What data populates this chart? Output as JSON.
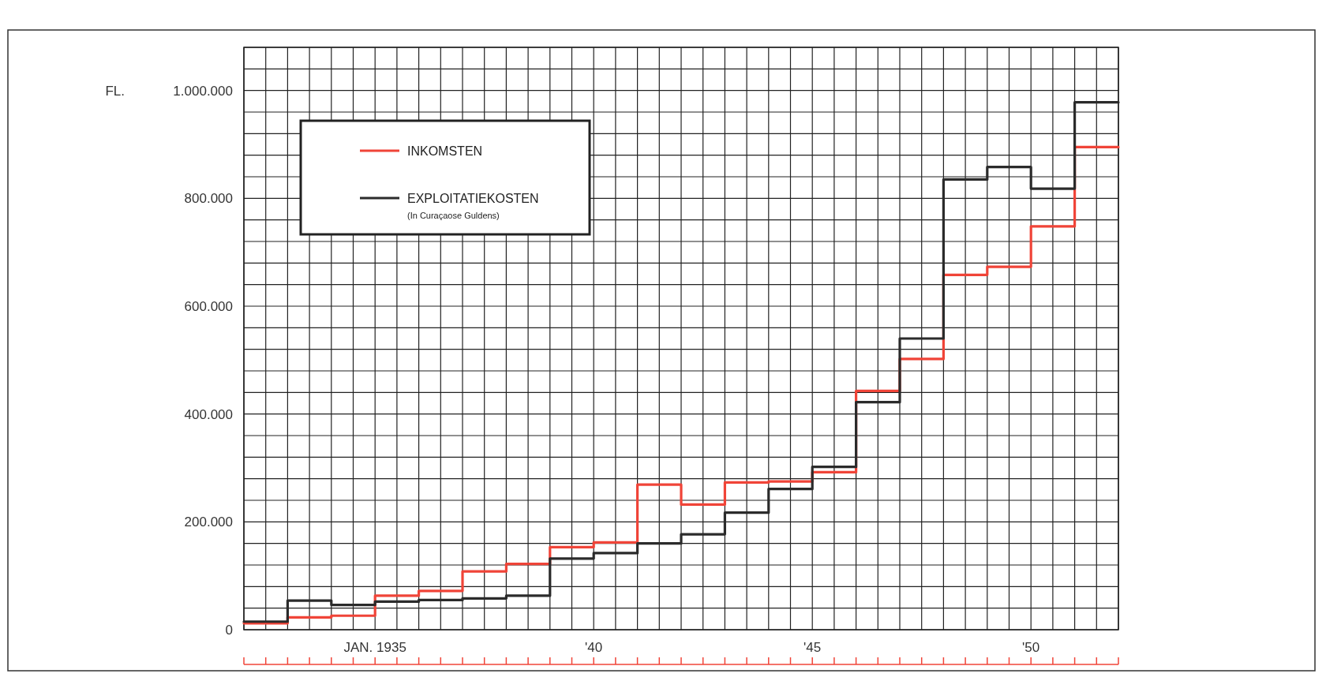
{
  "chart_data": {
    "type": "step",
    "ylabel": "FL.",
    "annotations": [
      "(In Curaçaose Guldens)"
    ],
    "legend": "top left",
    "grid": true,
    "x": [
      1932,
      1933,
      1934,
      1935,
      1936,
      1937,
      1938,
      1939,
      1940,
      1941,
      1942,
      1943,
      1944,
      1945,
      1946,
      1947,
      1948,
      1949,
      1950,
      1951,
      1952
    ],
    "series": [
      {
        "name": "INKOMSTEN",
        "color": "#f04438",
        "values": [
          12000,
          23000,
          26000,
          63000,
          72000,
          108000,
          122000,
          153000,
          162000,
          269000,
          232000,
          273000,
          275000,
          292000,
          443000,
          502000,
          658000,
          673000,
          748000,
          895000,
          895000
        ]
      },
      {
        "name": "EXPLOITATIEKOSTEN",
        "color": "#2b2b2b",
        "values": [
          15000,
          54000,
          46000,
          52000,
          55000,
          58000,
          63000,
          132000,
          142000,
          160000,
          177000,
          217000,
          261000,
          302000,
          422000,
          540000,
          835000,
          858000,
          818000,
          978000,
          978000
        ]
      }
    ],
    "xlim": [
      1932,
      1952
    ],
    "xticks": [
      {
        "value": 1932,
        "label": null
      },
      {
        "value": 1932.5,
        "label": null
      },
      {
        "value": 1933,
        "label": null
      },
      {
        "value": 1933.5,
        "label": null
      },
      {
        "value": 1934,
        "label": null
      },
      {
        "value": 1934.5,
        "label": null
      },
      {
        "value": 1935,
        "label": "JAN. 1935"
      },
      {
        "value": 1935.5,
        "label": null
      },
      {
        "value": 1936,
        "label": null
      },
      {
        "value": 1936.5,
        "label": null
      },
      {
        "value": 1937,
        "label": null
      },
      {
        "value": 1937.5,
        "label": null
      },
      {
        "value": 1938,
        "label": null
      },
      {
        "value": 1938.5,
        "label": null
      },
      {
        "value": 1939,
        "label": null
      },
      {
        "value": 1939.5,
        "label": null
      },
      {
        "value": 1940,
        "label": "'40"
      },
      {
        "value": 1940.5,
        "label": null
      },
      {
        "value": 1941,
        "label": null
      },
      {
        "value": 1941.5,
        "label": null
      },
      {
        "value": 1942,
        "label": null
      },
      {
        "value": 1942.5,
        "label": null
      },
      {
        "value": 1943,
        "label": null
      },
      {
        "value": 1943.5,
        "label": null
      },
      {
        "value": 1944,
        "label": null
      },
      {
        "value": 1944.5,
        "label": null
      },
      {
        "value": 1945,
        "label": "'45"
      },
      {
        "value": 1945.5,
        "label": null
      },
      {
        "value": 1946,
        "label": null
      },
      {
        "value": 1946.5,
        "label": null
      },
      {
        "value": 1947,
        "label": null
      },
      {
        "value": 1947.5,
        "label": null
      },
      {
        "value": 1948,
        "label": null
      },
      {
        "value": 1948.5,
        "label": null
      },
      {
        "value": 1949,
        "label": null
      },
      {
        "value": 1949.5,
        "label": null
      },
      {
        "value": 1950,
        "label": "'50"
      },
      {
        "value": 1950.5,
        "label": null
      },
      {
        "value": 1951,
        "label": null
      },
      {
        "value": 1951.5,
        "label": null
      },
      {
        "value": 1952,
        "label": null
      }
    ],
    "ylim": [
      0,
      1080000
    ],
    "yticks": [
      0,
      {
        "value": 40000,
        "label": null
      },
      {
        "value": 80000,
        "label": null
      },
      {
        "value": 120000,
        "label": null
      },
      {
        "value": 160000,
        "label": null
      },
      {
        "value": 200000,
        "label": "200.000"
      },
      {
        "value": 240000,
        "label": null
      },
      {
        "value": 280000,
        "label": null
      },
      {
        "value": 320000,
        "label": null
      },
      {
        "value": 360000,
        "label": null
      },
      {
        "value": 400000,
        "label": "400.000"
      },
      {
        "value": 440000,
        "label": null
      },
      {
        "value": 480000,
        "label": null
      },
      {
        "value": 520000,
        "label": null
      },
      {
        "value": 560000,
        "label": null
      },
      {
        "value": 600000,
        "label": "600.000"
      },
      {
        "value": 640000,
        "label": null
      },
      {
        "value": 680000,
        "label": null
      },
      {
        "value": 720000,
        "label": null
      },
      {
        "value": 760000,
        "label": null
      },
      {
        "value": 800000,
        "label": "800.000"
      },
      {
        "value": 840000,
        "label": null
      },
      {
        "value": 880000,
        "label": null
      },
      {
        "value": 920000,
        "label": null
      },
      {
        "value": 960000,
        "label": null
      },
      {
        "value": 1000000,
        "label": "1.000.000"
      },
      {
        "value": 1040000,
        "label": null
      },
      {
        "value": 1080000,
        "label": null
      }
    ]
  }
}
